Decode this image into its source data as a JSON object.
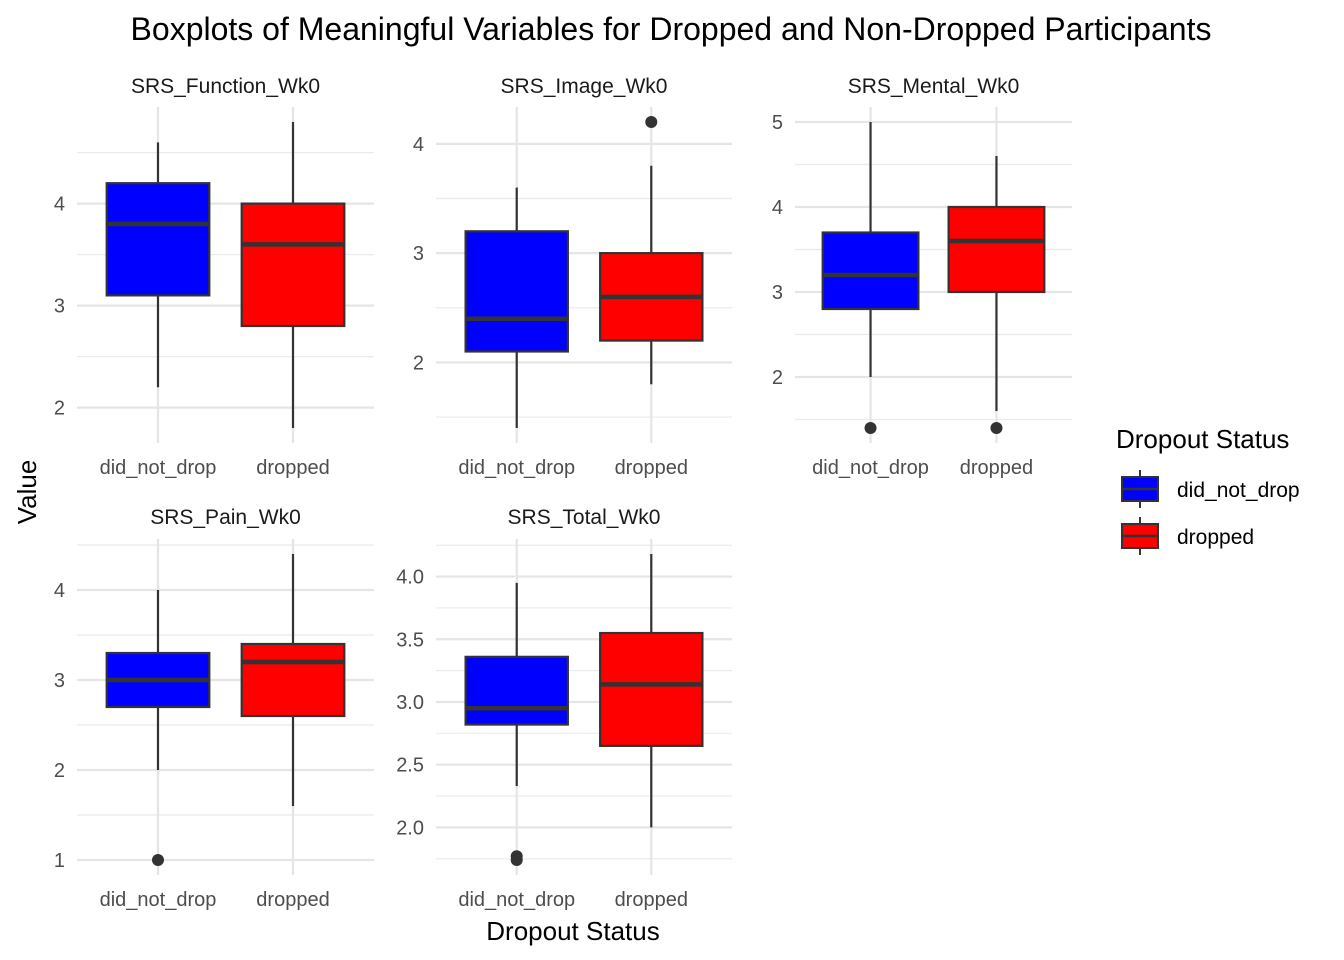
{
  "chart_data": {
    "type": "boxplot",
    "title": "Boxplots of Meaningful Variables for Dropped and Non-Dropped Participants",
    "xlabel": "Dropout Status",
    "ylabel": "Value",
    "grid": true,
    "legend": {
      "title": "Dropout Status",
      "placement": "right",
      "entries": [
        {
          "label": "did_not_drop",
          "color": "#0000FF"
        },
        {
          "label": "dropped",
          "color": "#FF0000"
        }
      ]
    },
    "categories": [
      "did_not_drop",
      "dropped"
    ],
    "panels": [
      {
        "name": "SRS_Function_Wk0",
        "ylim": [
          1.8,
          4.8
        ],
        "yticks": [
          2,
          3,
          4
        ],
        "boxes": [
          {
            "group": "did_not_drop",
            "min": 2.2,
            "q1": 3.1,
            "median": 3.8,
            "q3": 4.2,
            "max": 4.6,
            "outliers": []
          },
          {
            "group": "dropped",
            "min": 1.8,
            "q1": 2.8,
            "median": 3.6,
            "q3": 4.0,
            "max": 4.8,
            "outliers": []
          }
        ]
      },
      {
        "name": "SRS_Image_Wk0",
        "ylim": [
          1.4,
          4.2
        ],
        "yticks": [
          2,
          3,
          4
        ],
        "boxes": [
          {
            "group": "did_not_drop",
            "min": 1.4,
            "q1": 2.1,
            "median": 2.4,
            "q3": 3.2,
            "max": 3.6,
            "outliers": []
          },
          {
            "group": "dropped",
            "min": 1.8,
            "q1": 2.2,
            "median": 2.6,
            "q3": 3.0,
            "max": 3.8,
            "outliers": [
              4.2
            ]
          }
        ]
      },
      {
        "name": "SRS_Mental_Wk0",
        "ylim": [
          1.4,
          5.0
        ],
        "yticks": [
          2,
          3,
          4,
          5
        ],
        "boxes": [
          {
            "group": "did_not_drop",
            "min": 2.0,
            "q1": 2.8,
            "median": 3.2,
            "q3": 3.7,
            "max": 5.0,
            "outliers": [
              1.4
            ]
          },
          {
            "group": "dropped",
            "min": 1.6,
            "q1": 3.0,
            "median": 3.6,
            "q3": 4.0,
            "max": 4.6,
            "outliers": [
              1.4
            ]
          }
        ]
      },
      {
        "name": "SRS_Pain_Wk0",
        "ylim": [
          1.0,
          4.4
        ],
        "yticks": [
          1,
          2,
          3,
          4
        ],
        "boxes": [
          {
            "group": "did_not_drop",
            "min": 2.0,
            "q1": 2.7,
            "median": 3.0,
            "q3": 3.3,
            "max": 4.0,
            "outliers": [
              1.0
            ]
          },
          {
            "group": "dropped",
            "min": 1.6,
            "q1": 2.6,
            "median": 3.2,
            "q3": 3.4,
            "max": 4.4,
            "outliers": []
          }
        ]
      },
      {
        "name": "SRS_Total_Wk0",
        "ylim": [
          1.74,
          4.18
        ],
        "yticks": [
          "2.0",
          "2.5",
          "3.0",
          "3.5",
          "4.0"
        ],
        "boxes": [
          {
            "group": "did_not_drop",
            "min": 2.33,
            "q1": 2.82,
            "median": 2.95,
            "q3": 3.36,
            "max": 3.95,
            "outliers": [
              1.77,
              1.74
            ]
          },
          {
            "group": "dropped",
            "min": 2.0,
            "q1": 2.65,
            "median": 3.14,
            "q3": 3.55,
            "max": 4.18,
            "outliers": []
          }
        ]
      }
    ]
  }
}
